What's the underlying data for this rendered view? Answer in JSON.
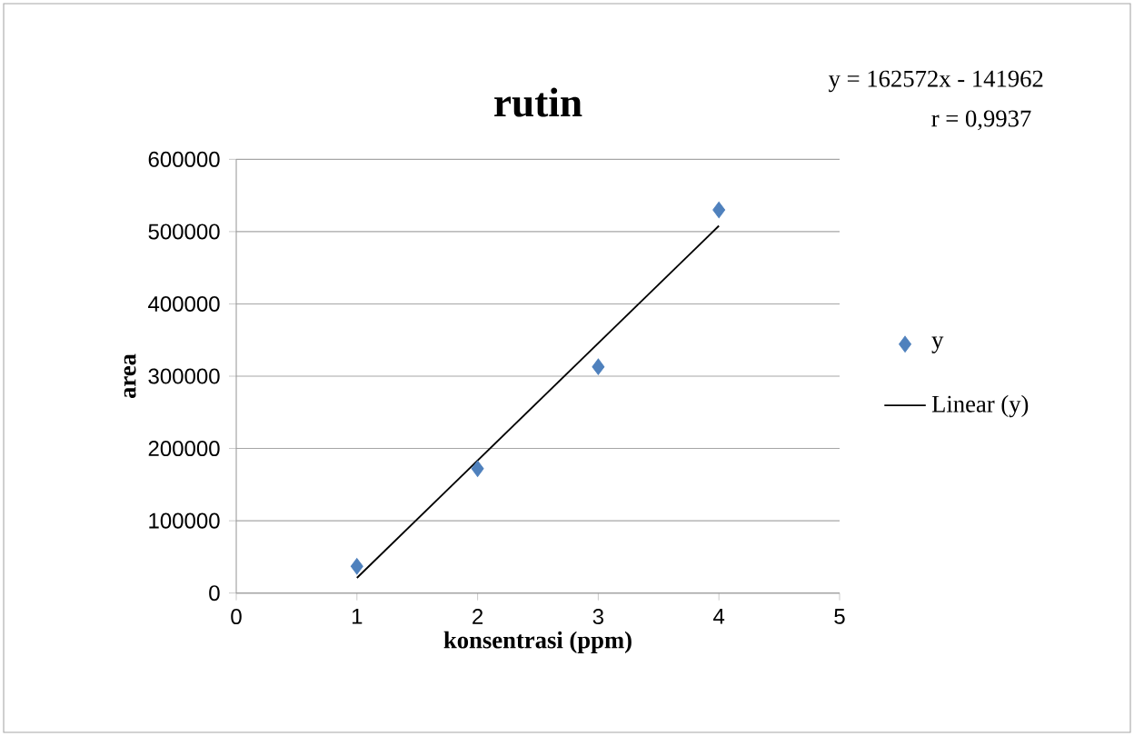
{
  "chart_data": {
    "type": "scatter",
    "title": "rutin",
    "xlabel": "konsentrasi (ppm)",
    "ylabel": "area",
    "annotations": [
      "y = 162572x - 141962",
      "r = 0,9937"
    ],
    "series": [
      {
        "name": "y",
        "color": "#4f81bd",
        "marker": "diamond",
        "x": [
          1,
          2,
          3,
          4
        ],
        "values": [
          37000,
          172000,
          313000,
          530000
        ]
      },
      {
        "name": "Linear (y)",
        "type": "line",
        "color": "#000000",
        "marker": "none",
        "line_style": "solid",
        "x": [
          1,
          4
        ],
        "values": [
          21000,
          508000
        ]
      }
    ],
    "xlim": [
      0,
      5
    ],
    "xticks": [
      0,
      1,
      2,
      3,
      4,
      5
    ],
    "ylim": [
      0,
      600000
    ],
    "yticks": [
      0,
      100000,
      200000,
      300000,
      400000,
      500000,
      600000
    ],
    "grid": "y",
    "legend": "right"
  }
}
